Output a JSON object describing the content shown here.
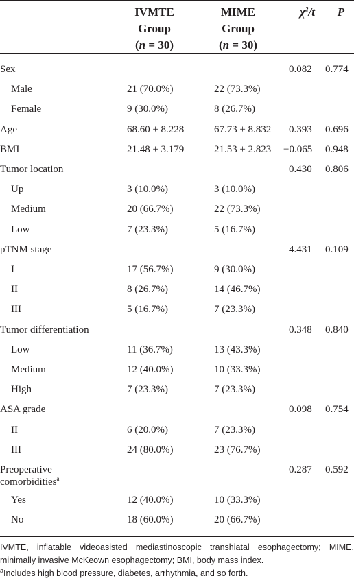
{
  "table": {
    "header": {
      "ivmte": [
        "IVMTE",
        "Group",
        [
          "(",
          "n",
          " = 30)"
        ]
      ],
      "mime": [
        "MIME",
        "Group",
        [
          "(",
          "n",
          " = 30)"
        ]
      ],
      "stat": [
        "χ",
        "2",
        "/t"
      ],
      "p": "P"
    },
    "rows": [
      {
        "label": "Sex",
        "stat": "0.082",
        "p": "0.774",
        "levels": [
          {
            "label": "Male",
            "ivmte": "21 (70.0%)",
            "mime": "22 (73.3%)"
          },
          {
            "label": "Female",
            "ivmte": "9 (30.0%)",
            "mime": "8 (26.7%)"
          }
        ]
      },
      {
        "label": "Age",
        "ivmte": "68.60 ± 8.228",
        "mime": "67.73 ± 8.832",
        "stat": "0.393",
        "p": "0.696"
      },
      {
        "label": "BMI",
        "ivmte": "21.48 ± 3.179",
        "mime": "21.53 ± 2.823",
        "stat": "−0.065",
        "p": "0.948"
      },
      {
        "label": "Tumor location",
        "stat": "0.430",
        "p": "0.806",
        "levels": [
          {
            "label": "Up",
            "ivmte": "3 (10.0%)",
            "mime": "3 (10.0%)"
          },
          {
            "label": "Medium",
            "ivmte": "20 (66.7%)",
            "mime": "22 (73.3%)"
          },
          {
            "label": "Low",
            "ivmte": "7 (23.3%)",
            "mime": "5 (16.7%)"
          }
        ]
      },
      {
        "label": "pTNM stage",
        "stat": "4.431",
        "p": "0.109",
        "levels": [
          {
            "label": "I",
            "ivmte": "17 (56.7%)",
            "mime": "9 (30.0%)"
          },
          {
            "label": "II",
            "ivmte": "8 (26.7%)",
            "mime": "14 (46.7%)"
          },
          {
            "label": "III",
            "ivmte": "5 (16.7%)",
            "mime": "7 (23.3%)"
          }
        ]
      },
      {
        "label": "Tumor differentiation",
        "stat": "0.348",
        "p": "0.840",
        "levels": [
          {
            "label": "Low",
            "ivmte": "11 (36.7%)",
            "mime": "13 (43.3%)"
          },
          {
            "label": "Medium",
            "ivmte": "12 (40.0%)",
            "mime": "10 (33.3%)"
          },
          {
            "label": "High",
            "ivmte": "7 (23.3%)",
            "mime": "7 (23.3%)"
          }
        ]
      },
      {
        "label": "ASA grade",
        "stat": "0.098",
        "p": "0.754",
        "levels": [
          {
            "label": "II",
            "ivmte": "6 (20.0%)",
            "mime": "7 (23.3%)"
          },
          {
            "label": "III",
            "ivmte": "24 (80.0%)",
            "mime": "23 (76.7%)"
          }
        ]
      },
      {
        "label": "Preoperative comorbidities",
        "note": "a",
        "stat": "0.287",
        "p": "0.592",
        "levels": [
          {
            "label": "Yes",
            "ivmte": "12 (40.0%)",
            "mime": "10 (33.3%)"
          },
          {
            "label": "No",
            "ivmte": "18 (60.0%)",
            "mime": "20 (66.7%)"
          }
        ]
      }
    ],
    "footnotes": [
      {
        "text": "IVMTE, inflatable videoasisted mediastinoscopic transhiatal esophagectomy; MIME, minimally invasive McKeown esophagectomy; BMI, body mass index."
      },
      {
        "mark": "a",
        "text": "Includes high blood pressure, diabetes, arrhythmia, and so forth."
      }
    ]
  }
}
